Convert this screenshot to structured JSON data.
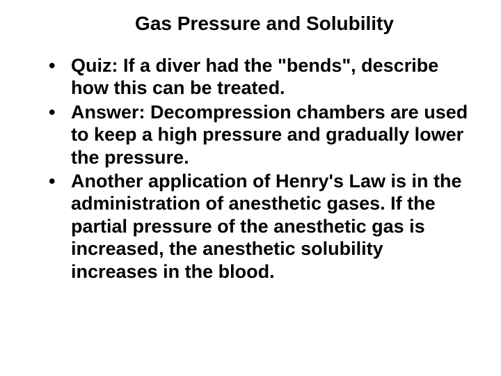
{
  "slide": {
    "title": "Gas Pressure and Solubility",
    "bullets": [
      "Quiz: If a diver had the \"bends\", describe how this can be treated.",
      "Answer: Decompression chambers are used to keep a high pressure and gradually lower the pressure.",
      "Another application of Henry's Law is in the administration of anesthetic gases. If the partial pressure of the anesthetic gas is increased, the anesthetic solubility increases in the blood."
    ],
    "background_color": "#ffffff",
    "text_color": "#000000",
    "title_fontsize": 28,
    "body_fontsize": 27,
    "font_family": "Arial",
    "font_weight": "bold"
  }
}
